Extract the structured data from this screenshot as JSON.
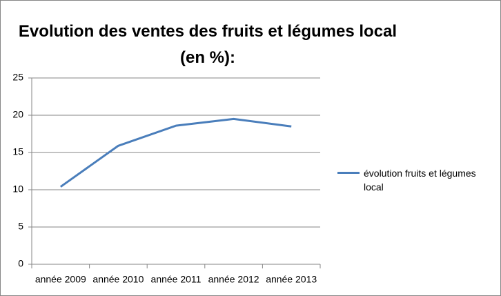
{
  "chart_data": {
    "type": "line",
    "title": "Evolution des ventes des fruits et légumes local (en %):",
    "categories": [
      "année 2009",
      "année 2010",
      "année 2011",
      "année 2012",
      "année 2013"
    ],
    "series": [
      {
        "name": "évolution fruits et légumes local",
        "color": "#4a7ebb",
        "values": [
          10.4,
          15.9,
          18.6,
          19.5,
          18.5
        ]
      }
    ],
    "ylim": [
      0,
      25
    ],
    "yticks": [
      0,
      5,
      10,
      15,
      20,
      25
    ],
    "grid": true,
    "legend": "right"
  }
}
